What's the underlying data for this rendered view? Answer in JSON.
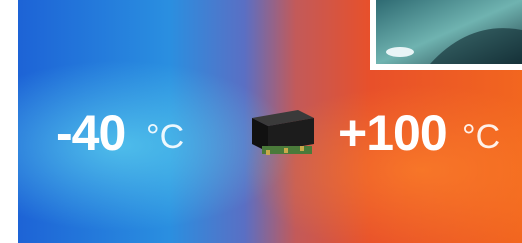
{
  "left": {
    "value": "-40",
    "unit": "°C"
  },
  "right": {
    "value": "+100",
    "unit": "°C"
  }
}
